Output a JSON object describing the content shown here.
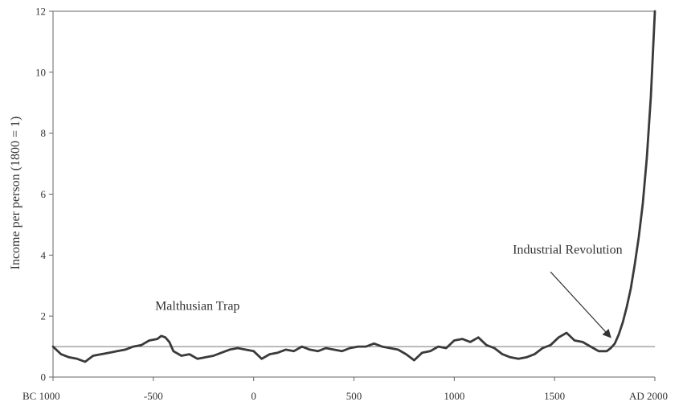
{
  "chart_data": {
    "type": "line",
    "title": "",
    "ylabel": "Income per person (1800 = 1)",
    "xlabel": "",
    "xlim": [
      -1000,
      2000
    ],
    "ylim": [
      0,
      12
    ],
    "x_ticks": [
      -1000,
      -500,
      0,
      500,
      1000,
      1500,
      2000
    ],
    "x_tick_labels": [
      "BC 1000",
      "-500",
      "0",
      "500",
      "1000",
      "1500",
      "AD 2000"
    ],
    "y_ticks": [
      0,
      2,
      4,
      6,
      8,
      10,
      12
    ],
    "y_tick_labels": [
      "0",
      "2",
      "4",
      "6",
      "8",
      "10",
      "12"
    ],
    "grid": false,
    "reference_line": {
      "y": 1.0
    },
    "series": [
      {
        "x": [
          -1000,
          -960,
          -920,
          -880,
          -840,
          -800,
          -760,
          -720,
          -680,
          -640,
          -600,
          -560,
          -520,
          -480,
          -460,
          -440,
          -420,
          -400,
          -360,
          -320,
          -280,
          -240,
          -200,
          -160,
          -120,
          -80,
          -40,
          0,
          40,
          80,
          120,
          160,
          200,
          240,
          280,
          320,
          360,
          400,
          440,
          480,
          520,
          560,
          600,
          640,
          680,
          720,
          760,
          800,
          840,
          880,
          920,
          960,
          1000,
          1040,
          1080,
          1120,
          1160,
          1200,
          1240,
          1280,
          1320,
          1360,
          1400,
          1440,
          1480,
          1520,
          1560,
          1600,
          1640,
          1680,
          1720,
          1760,
          1780,
          1800,
          1820,
          1840,
          1860,
          1880,
          1900,
          1920,
          1940,
          1960,
          1980,
          2000
        ],
        "y": [
          1.0,
          0.75,
          0.65,
          0.6,
          0.5,
          0.7,
          0.75,
          0.8,
          0.85,
          0.9,
          1.0,
          1.05,
          1.2,
          1.25,
          1.35,
          1.3,
          1.15,
          0.85,
          0.7,
          0.75,
          0.6,
          0.65,
          0.7,
          0.8,
          0.9,
          0.95,
          0.9,
          0.85,
          0.6,
          0.75,
          0.8,
          0.9,
          0.85,
          1.0,
          0.9,
          0.85,
          0.95,
          0.9,
          0.85,
          0.95,
          1.0,
          1.0,
          1.1,
          1.0,
          0.95,
          0.9,
          0.75,
          0.55,
          0.8,
          0.85,
          1.0,
          0.95,
          1.2,
          1.25,
          1.15,
          1.3,
          1.05,
          0.95,
          0.75,
          0.65,
          0.6,
          0.65,
          0.75,
          0.95,
          1.05,
          1.3,
          1.45,
          1.2,
          1.15,
          1.0,
          0.85,
          0.85,
          0.95,
          1.1,
          1.4,
          1.8,
          2.3,
          2.9,
          3.7,
          4.6,
          5.7,
          7.2,
          9.2,
          12.0
        ]
      }
    ],
    "annotations": [
      {
        "text": "Malthusian Trap",
        "x": -280,
        "y": 2.2
      },
      {
        "text": "Industrial Revolution",
        "x": 1565,
        "y": 4.05,
        "arrow_to": {
          "x": 1780,
          "y": 1.3
        },
        "arrow_from": {
          "x": 1480,
          "y": 3.45
        }
      }
    ]
  }
}
